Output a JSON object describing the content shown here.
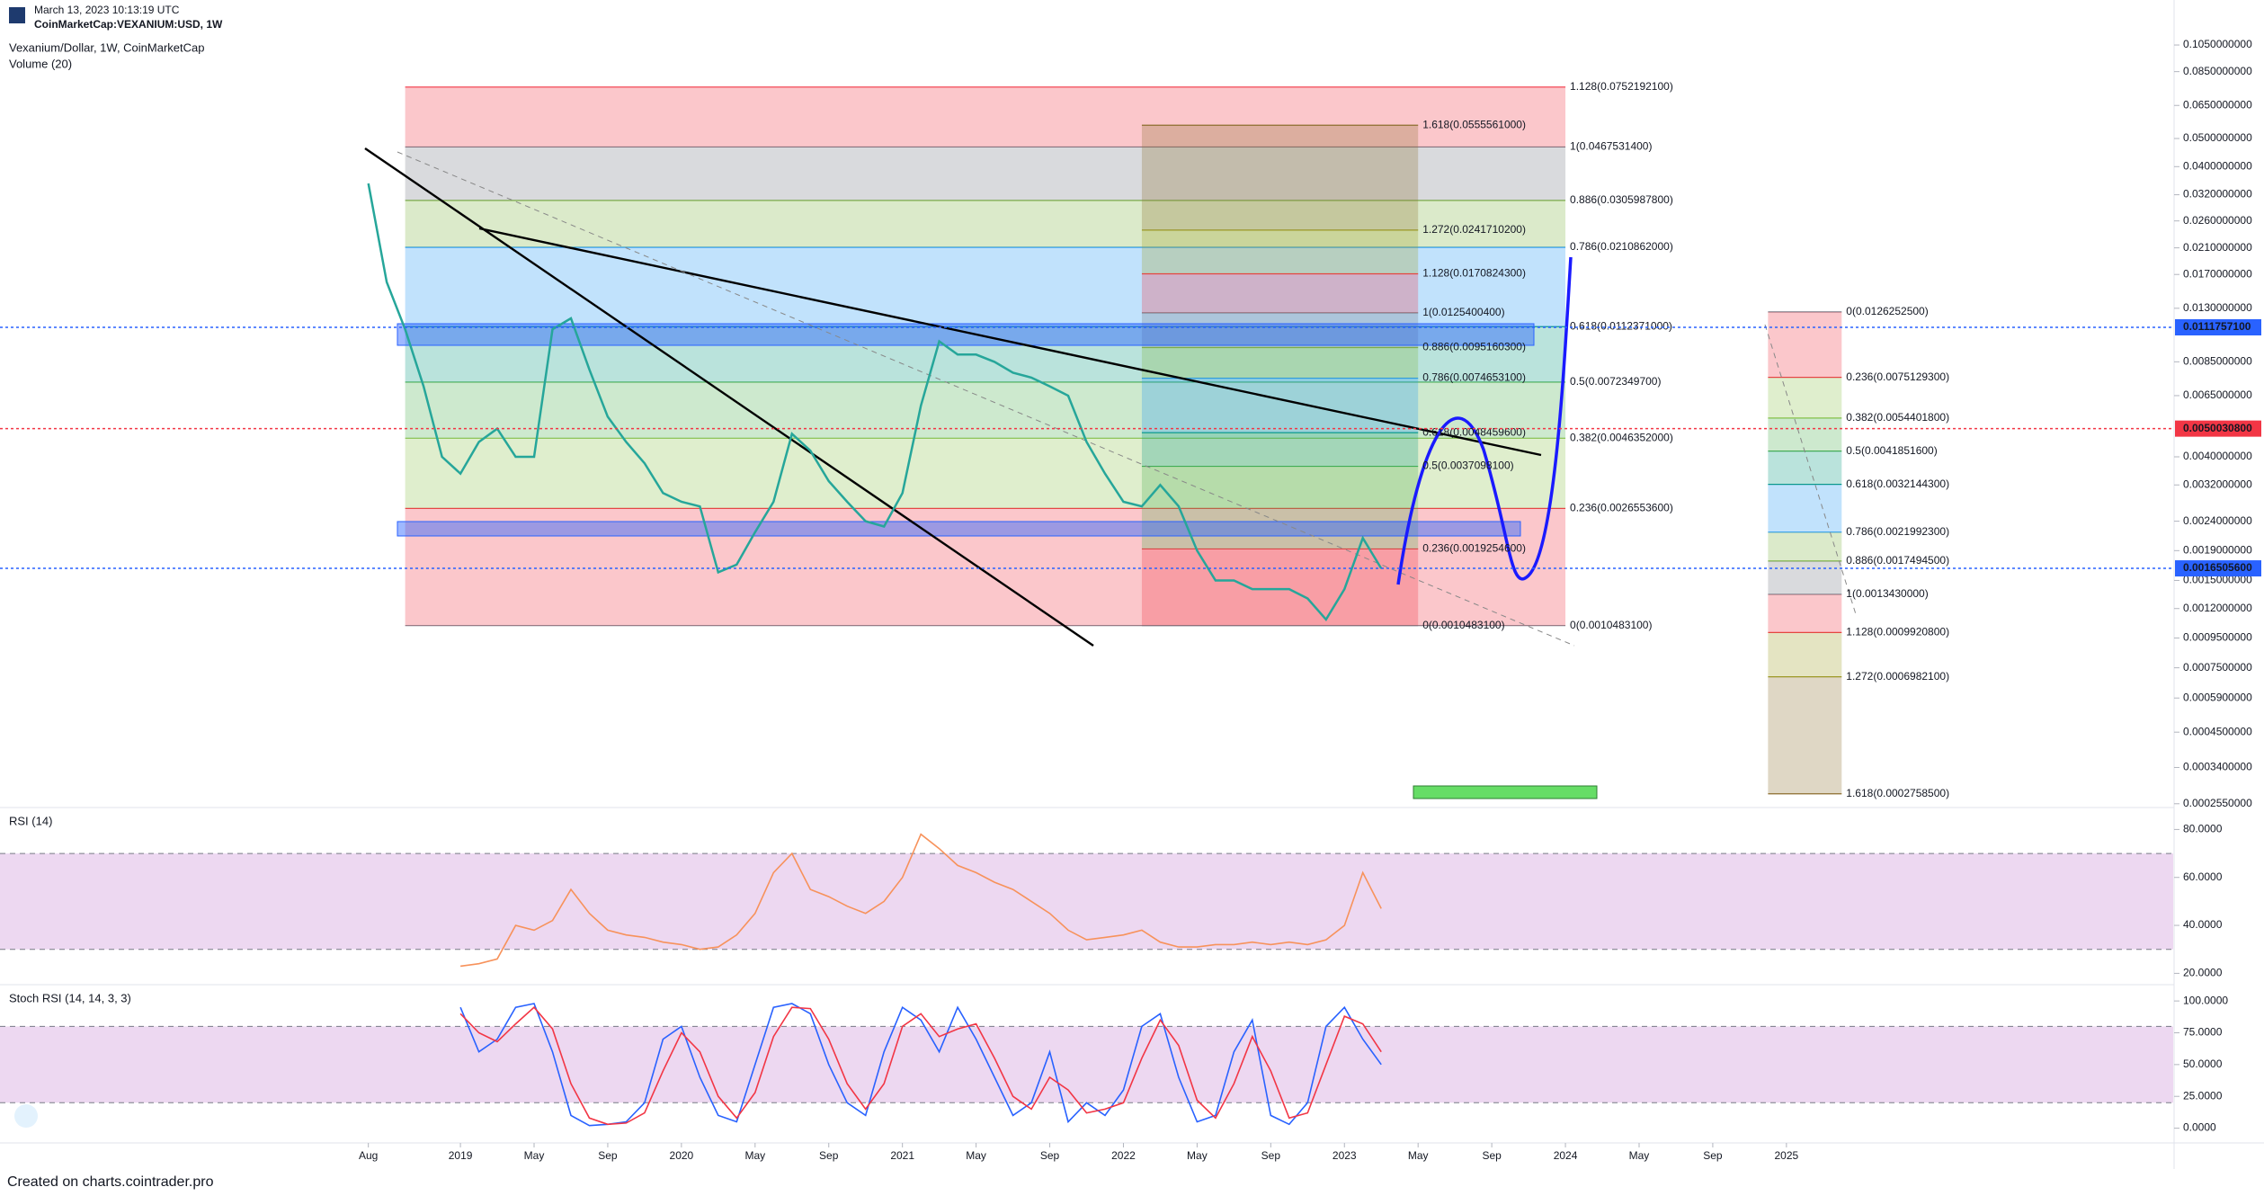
{
  "header": {
    "date": "March 13, 2023 10:13:19 UTC",
    "symbol": "CoinMarketCap:VEXANIUM:USD, 1W"
  },
  "footer": "Created on charts.cointrader.pro",
  "chart_data": [
    {
      "type": "line",
      "title": "Vexanium/Dollar, 1W, CoinMarketCap",
      "subtitle": "Volume (20)",
      "log_scale": true,
      "xlim": [
        "2016-12",
        "2026-10"
      ],
      "ylim": [
        0.000251,
        0.1128
      ],
      "yticks": [
        {
          "value": 0.105,
          "label": "0.1050000000"
        },
        {
          "value": 0.085,
          "label": "0.0850000000"
        },
        {
          "value": 0.065,
          "label": "0.0650000000"
        },
        {
          "value": 0.05,
          "label": "0.0500000000"
        },
        {
          "value": 0.04,
          "label": "0.0400000000"
        },
        {
          "value": 0.032,
          "label": "0.0320000000"
        },
        {
          "value": 0.026,
          "label": "0.0260000000"
        },
        {
          "value": 0.021,
          "label": "0.0210000000"
        },
        {
          "value": 0.017,
          "label": "0.0170000000"
        },
        {
          "value": 0.013,
          "label": "0.0130000000"
        },
        {
          "value": 0.0085,
          "label": "0.0085000000"
        },
        {
          "value": 0.0065,
          "label": "0.0065000000"
        },
        {
          "value": 0.004,
          "label": "0.0040000000"
        },
        {
          "value": 0.0032,
          "label": "0.0032000000"
        },
        {
          "value": 0.0024,
          "label": "0.0024000000"
        },
        {
          "value": 0.0019,
          "label": "0.0019000000"
        },
        {
          "value": 0.0015,
          "label": "0.0015000000"
        },
        {
          "value": 0.0012,
          "label": "0.0012000000"
        },
        {
          "value": 0.00095,
          "label": "0.0009500000"
        },
        {
          "value": 0.00075,
          "label": "0.0007500000"
        },
        {
          "value": 0.00059,
          "label": "0.0005900000"
        },
        {
          "value": 0.00045,
          "label": "0.0004500000"
        },
        {
          "value": 0.00034,
          "label": "0.0003400000"
        },
        {
          "value": 0.000255,
          "label": "0.0002550000"
        }
      ],
      "x": [
        "2018-08",
        "2018-09",
        "2018-10",
        "2018-11",
        "2018-12",
        "2019-01",
        "2019-02",
        "2019-03",
        "2019-04",
        "2019-05",
        "2019-06",
        "2019-07",
        "2019-08",
        "2019-09",
        "2019-10",
        "2019-11",
        "2019-12",
        "2020-01",
        "2020-02",
        "2020-03",
        "2020-04",
        "2020-05",
        "2020-06",
        "2020-07",
        "2020-08",
        "2020-09",
        "2020-10",
        "2020-11",
        "2020-12",
        "2021-01",
        "2021-02",
        "2021-03",
        "2021-04",
        "2021-05",
        "2021-06",
        "2021-07",
        "2021-08",
        "2021-09",
        "2021-10",
        "2021-11",
        "2021-12",
        "2022-01",
        "2022-02",
        "2022-03",
        "2022-04",
        "2022-05",
        "2022-06",
        "2022-07",
        "2022-08",
        "2022-09",
        "2022-10",
        "2022-11",
        "2022-12",
        "2023-01",
        "2023-02",
        "2023-03"
      ],
      "series": [
        {
          "color": "#26a69a",
          "values": [
            0.035,
            0.016,
            0.011,
            0.007,
            0.004,
            0.0035,
            0.0045,
            0.005,
            0.004,
            0.004,
            0.011,
            0.012,
            0.008,
            0.0055,
            0.0045,
            0.0038,
            0.003,
            0.0028,
            0.0027,
            0.0016,
            0.0017,
            0.0022,
            0.0028,
            0.0048,
            0.0042,
            0.0033,
            0.0028,
            0.0024,
            0.0023,
            0.003,
            0.006,
            0.01,
            0.009,
            0.009,
            0.0085,
            0.0078,
            0.0075,
            0.007,
            0.0065,
            0.0045,
            0.0035,
            0.0028,
            0.0027,
            0.0032,
            0.0027,
            0.0019,
            0.0015,
            0.0015,
            0.0014,
            0.0014,
            0.0014,
            0.0013,
            0.0011,
            0.0014,
            0.0021,
            0.00165
          ]
        }
      ],
      "fib_tools": [
        {
          "x": [
            "2018-10",
            "2024-01"
          ],
          "levels": [
            {
              "value": 0.00104831,
              "label": "0(0.0010483100)",
              "color": "#787b86"
            },
            {
              "value": 0.00265536,
              "label": "0.236(0.0026553600)",
              "color": "#f23645"
            },
            {
              "value": 0.0046352,
              "label": "0.382(0.0046352000)",
              "color": "#8bc34a"
            },
            {
              "value": 0.00723497,
              "label": "0.5(0.0072349700)",
              "color": "#4caf50"
            },
            {
              "value": 0.0112371,
              "label": "0.618(0.0112371000)",
              "color": "#089981"
            },
            {
              "value": 0.0210862,
              "label": "0.786(0.0210862000)",
              "color": "#2196f3"
            },
            {
              "value": 0.03059878,
              "label": "0.886(0.0305987800)",
              "color": "#7cb342"
            },
            {
              "value": 0.04675314,
              "label": "1(0.0467531400)",
              "color": "#787b86"
            },
            {
              "value": 0.07521921,
              "label": "1.128(0.0752192100)",
              "color": "#f23645"
            }
          ]
        },
        {
          "x": [
            "2022-02",
            "2023-05"
          ],
          "levels": [
            {
              "value": 0.00104831,
              "label": "0(0.0010483100)",
              "color": "#787b86"
            },
            {
              "value": 0.00192546,
              "label": "0.236(0.0019254600)",
              "color": "#f23645"
            },
            {
              "value": 0.00370981,
              "label": "0.5(0.0037098100)",
              "color": "#4caf50"
            },
            {
              "value": 0.00484596,
              "label": "0.618(0.0048459600)",
              "color": "#089981"
            },
            {
              "value": 0.00746531,
              "label": "0.786(0.0074653100)",
              "color": "#2196f3"
            },
            {
              "value": 0.00951603,
              "label": "0.886(0.0095160300)",
              "color": "#7cb342"
            },
            {
              "value": 0.01254004,
              "label": "1(0.0125400400)",
              "color": "#787b86"
            },
            {
              "value": 0.01708243,
              "label": "1.128(0.0170824300)",
              "color": "#f23645"
            },
            {
              "value": 0.02417102,
              "label": "1.272(0.0241710200)",
              "color": "#9e9d24"
            },
            {
              "value": 0.0555561,
              "label": "1.618(0.0555561000)",
              "color": "#8d6e2f"
            }
          ]
        },
        {
          "x": [
            "2024-12",
            "2025-04"
          ],
          "levels": [
            {
              "value": 0.01262525,
              "label": "0(0.0126252500)",
              "color": "#787b86"
            },
            {
              "value": 0.00751293,
              "label": "0.236(0.0075129300)",
              "color": "#f23645"
            },
            {
              "value": 0.00544018,
              "label": "0.382(0.0054401800)",
              "color": "#8bc34a"
            },
            {
              "value": 0.00418516,
              "label": "0.5(0.0041851600)",
              "color": "#4caf50"
            },
            {
              "value": 0.00321443,
              "label": "0.618(0.0032144300)",
              "color": "#089981"
            },
            {
              "value": 0.00219923,
              "label": "0.786(0.0021992300)",
              "color": "#2196f3"
            },
            {
              "value": 0.00174945,
              "label": "0.886(0.0017494500)",
              "color": "#7cb342"
            },
            {
              "value": 0.001343,
              "label": "1(0.0013430000)",
              "color": "#787b86"
            },
            {
              "value": 0.00099208,
              "label": "1.128(0.0009920800)",
              "color": "#f23645"
            },
            {
              "value": 0.00069821,
              "label": "1.272(0.0006982100)",
              "color": "#9e9d24"
            },
            {
              "value": 0.00027585,
              "label": "1.618(0.0002758500)",
              "color": "#8d6e2f"
            }
          ]
        }
      ],
      "markers": [
        {
          "value": 0.01117571,
          "label": "0.0111757100",
          "color": "#2962ff"
        },
        {
          "value": 0.00500308,
          "label": "0.0050030800",
          "color": "#f23645"
        },
        {
          "value": 0.00165056,
          "label": "0.0016505600",
          "color": "#2962ff"
        }
      ]
    },
    {
      "type": "line",
      "title": "RSI (14)",
      "xlim": [
        "2016-12",
        "2026-10"
      ],
      "ylim": [
        16.4,
        88.4
      ],
      "yticks": [
        {
          "value": 80,
          "label": "80.0000"
        },
        {
          "value": 60,
          "label": "60.0000"
        },
        {
          "value": 40,
          "label": "40.0000"
        },
        {
          "value": 20,
          "label": "20.0000"
        }
      ],
      "bands": [
        30,
        70
      ],
      "band_color": "#9c27b0",
      "x": [
        "2019-01",
        "2019-02",
        "2019-03",
        "2019-04",
        "2019-05",
        "2019-06",
        "2019-07",
        "2019-08",
        "2019-09",
        "2019-10",
        "2019-11",
        "2019-12",
        "2020-01",
        "2020-02",
        "2020-03",
        "2020-04",
        "2020-05",
        "2020-06",
        "2020-07",
        "2020-08",
        "2020-09",
        "2020-10",
        "2020-11",
        "2020-12",
        "2021-01",
        "2021-02",
        "2021-03",
        "2021-04",
        "2021-05",
        "2021-06",
        "2021-07",
        "2021-08",
        "2021-09",
        "2021-10",
        "2021-11",
        "2021-12",
        "2022-01",
        "2022-02",
        "2022-03",
        "2022-04",
        "2022-05",
        "2022-06",
        "2022-07",
        "2022-08",
        "2022-09",
        "2022-10",
        "2022-11",
        "2022-12",
        "2023-01",
        "2023-02",
        "2023-03"
      ],
      "series": [
        {
          "color": "#f7925b",
          "values": [
            23,
            24,
            26,
            40,
            38,
            42,
            55,
            45,
            38,
            36,
            35,
            33,
            32,
            30,
            31,
            36,
            45,
            62,
            70,
            55,
            52,
            48,
            45,
            50,
            60,
            78,
            72,
            65,
            62,
            58,
            55,
            50,
            45,
            38,
            34,
            35,
            36,
            38,
            33,
            31,
            31,
            32,
            32,
            33,
            32,
            33,
            32,
            34,
            40,
            62,
            47
          ]
        }
      ]
    },
    {
      "type": "line",
      "title": "Stoch RSI (14, 14, 3, 3)",
      "xlim": [
        "2016-12",
        "2026-10"
      ],
      "ylim": [
        -10.2,
        111.4
      ],
      "yticks": [
        {
          "value": 100,
          "label": "100.0000"
        },
        {
          "value": 75,
          "label": "75.0000"
        },
        {
          "value": 50,
          "label": "50.0000"
        },
        {
          "value": 25,
          "label": "25.0000"
        },
        {
          "value": 0,
          "label": "0.0000"
        }
      ],
      "bands": [
        20,
        80
      ],
      "band_color": "#9c27b0",
      "xticks": [
        {
          "value": "2018-08",
          "label": "Aug"
        },
        {
          "value": "2019-01",
          "label": "2019"
        },
        {
          "value": "2019-05",
          "label": "May"
        },
        {
          "value": "2019-09",
          "label": "Sep"
        },
        {
          "value": "2020-01",
          "label": "2020"
        },
        {
          "value": "2020-05",
          "label": "May"
        },
        {
          "value": "2020-09",
          "label": "Sep"
        },
        {
          "value": "2021-01",
          "label": "2021"
        },
        {
          "value": "2021-05",
          "label": "May"
        },
        {
          "value": "2021-09",
          "label": "Sep"
        },
        {
          "value": "2022-01",
          "label": "2022"
        },
        {
          "value": "2022-05",
          "label": "May"
        },
        {
          "value": "2022-09",
          "label": "Sep"
        },
        {
          "value": "2023-01",
          "label": "2023"
        },
        {
          "value": "2023-05",
          "label": "May"
        },
        {
          "value": "2023-09",
          "label": "Sep"
        },
        {
          "value": "2024-01",
          "label": "2024"
        },
        {
          "value": "2024-05",
          "label": "May"
        },
        {
          "value": "2024-09",
          "label": "Sep"
        },
        {
          "value": "2025-01",
          "label": "2025"
        }
      ],
      "x": [
        "2019-01",
        "2019-02",
        "2019-03",
        "2019-04",
        "2019-05",
        "2019-06",
        "2019-07",
        "2019-08",
        "2019-09",
        "2019-10",
        "2019-11",
        "2019-12",
        "2020-01",
        "2020-02",
        "2020-03",
        "2020-04",
        "2020-05",
        "2020-06",
        "2020-07",
        "2020-08",
        "2020-09",
        "2020-10",
        "2020-11",
        "2020-12",
        "2021-01",
        "2021-02",
        "2021-03",
        "2021-04",
        "2021-05",
        "2021-06",
        "2021-07",
        "2021-08",
        "2021-09",
        "2021-10",
        "2021-11",
        "2021-12",
        "2022-01",
        "2022-02",
        "2022-03",
        "2022-04",
        "2022-05",
        "2022-06",
        "2022-07",
        "2022-08",
        "2022-09",
        "2022-10",
        "2022-11",
        "2022-12",
        "2023-01",
        "2023-02",
        "2023-03"
      ],
      "series": [
        {
          "color": "#2962ff",
          "values": [
            95,
            60,
            70,
            95,
            98,
            60,
            10,
            2,
            3,
            5,
            20,
            70,
            80,
            40,
            10,
            5,
            50,
            95,
            98,
            90,
            50,
            20,
            10,
            60,
            95,
            85,
            60,
            95,
            70,
            40,
            10,
            20,
            60,
            5,
            20,
            10,
            30,
            80,
            90,
            40,
            5,
            10,
            60,
            85,
            10,
            3,
            20,
            80,
            95,
            70,
            50
          ]
        },
        {
          "color": "#f23645",
          "values": [
            90,
            75,
            68,
            82,
            95,
            78,
            35,
            8,
            3,
            4,
            12,
            45,
            75,
            60,
            25,
            8,
            28,
            72,
            95,
            94,
            70,
            35,
            15,
            35,
            80,
            90,
            72,
            78,
            82,
            55,
            25,
            15,
            40,
            30,
            12,
            15,
            20,
            55,
            85,
            65,
            22,
            8,
            35,
            72,
            45,
            8,
            12,
            50,
            88,
            82,
            60
          ]
        }
      ]
    }
  ]
}
